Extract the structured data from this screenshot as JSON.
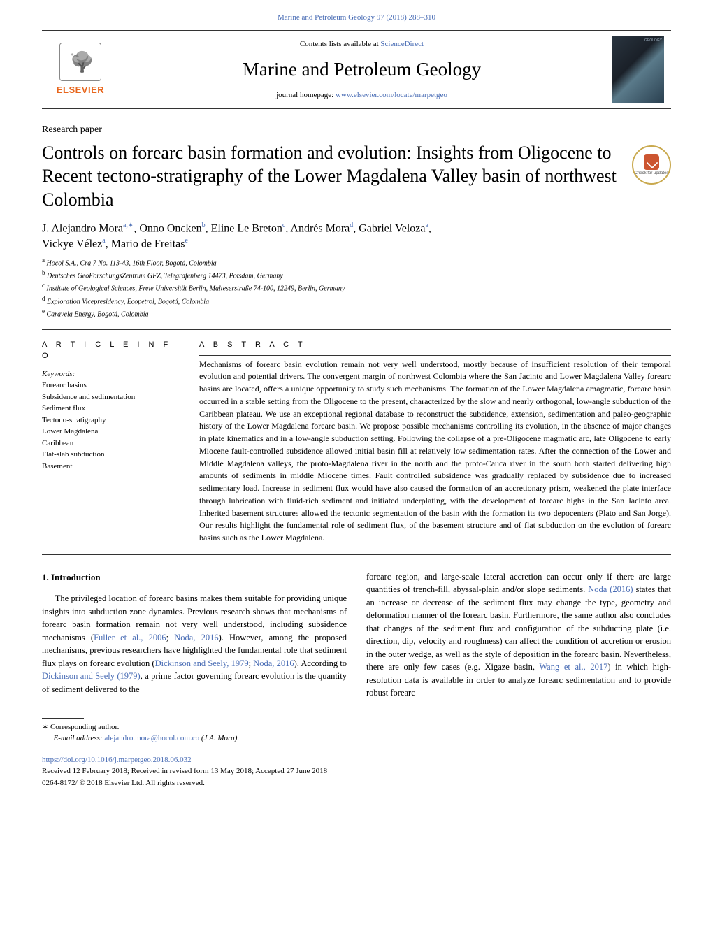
{
  "journal": {
    "citation": "Marine and Petroleum Geology 97 (2018) 288–310",
    "contents_prefix": "Contents lists available at ",
    "contents_link": "ScienceDirect",
    "name": "Marine and Petroleum Geology",
    "homepage_prefix": "journal homepage: ",
    "homepage_url": "www.elsevier.com/locate/marpetgeo",
    "publisher": "ELSEVIER",
    "cover_label": "GEOLOGY"
  },
  "article": {
    "type": "Research paper",
    "title": "Controls on forearc basin formation and evolution: Insights from Oligocene to Recent tectono-stratigraphy of the Lower Magdalena Valley basin of northwest Colombia",
    "check_updates": "Check for updates"
  },
  "authors_line1": "J. Alejandro Mora",
  "authors_a1_sup": "a,∗",
  "authors_sep1": ", Onno Oncken",
  "authors_sup_b": "b",
  "authors_sep2": ", Eline Le Breton",
  "authors_sup_c": "c",
  "authors_sep3": ", Andrés Mora",
  "authors_sup_d": "d",
  "authors_sep4": ", Gabriel Veloza",
  "authors_sup_a2": "a",
  "authors_sep5": ",",
  "authors_line2a": "Vickye Vélez",
  "authors_sup_a3": "a",
  "authors_sep6": ", Mario de Freitas",
  "authors_sup_e": "e",
  "affiliations": {
    "a": "Hocol S.A., Cra 7 No. 113-43, 16th Floor, Bogotá, Colombia",
    "b": "Deutsches GeoForschungsZentrum GFZ, Telegrafenberg 14473, Potsdam, Germany",
    "c": "Institute of Geological Sciences, Freie Universität Berlin, Malteserstraße 74-100, 12249, Berlin, Germany",
    "d": "Exploration Vicepresidency, Ecopetrol, Bogotá, Colombia",
    "e": "Caravela Energy, Bogotá, Colombia"
  },
  "sections": {
    "article_info": "A R T I C L E  I N F O",
    "abstract": "A B S T R A C T",
    "keywords_label": "Keywords:",
    "intro_heading": "1. Introduction"
  },
  "keywords": [
    "Forearc basins",
    "Subsidence and sedimentation",
    "Sediment flux",
    "Tectono-stratigraphy",
    "Lower Magdalena",
    "Caribbean",
    "Flat-slab subduction",
    "Basement"
  ],
  "abstract": "Mechanisms of forearc basin evolution remain not very well understood, mostly because of insufficient resolution of their temporal evolution and potential drivers. The convergent margin of northwest Colombia where the San Jacinto and Lower Magdalena Valley forearc basins are located, offers a unique opportunity to study such mechanisms. The formation of the Lower Magdalena amagmatic, forearc basin occurred in a stable setting from the Oligocene to the present, characterized by the slow and nearly orthogonal, low-angle subduction of the Caribbean plateau. We use an exceptional regional database to reconstruct the subsidence, extension, sedimentation and paleo-geographic history of the Lower Magdalena forearc basin. We propose possible mechanisms controlling its evolution, in the absence of major changes in plate kinematics and in a low-angle subduction setting. Following the collapse of a pre-Oligocene magmatic arc, late Oligocene to early Miocene fault-controlled subsidence allowed initial basin fill at relatively low sedimentation rates. After the connection of the Lower and Middle Magdalena valleys, the proto-Magdalena river in the north and the proto-Cauca river in the south both started delivering high amounts of sediments in middle Miocene times. Fault controlled subsidence was gradually replaced by subsidence due to increased sedimentary load. Increase in sediment flux would have also caused the formation of an accretionary prism, weakened the plate interface through lubrication with fluid-rich sediment and initiated underplating, with the development of forearc highs in the San Jacinto area. Inherited basement structures allowed the tectonic segmentation of the basin with the formation its two depocenters (Plato and San Jorge). Our results highlight the fundamental role of sediment flux, of the basement structure and of flat subduction on the evolution of forearc basins such as the Lower Magdalena.",
  "intro": {
    "col1_p1_a": "The privileged location of forearc basins makes them suitable for providing unique insights into subduction zone dynamics. Previous research shows that mechanisms of forearc basin formation remain not very well understood, including subsidence mechanisms (",
    "col1_ref1": "Fuller et al., 2006",
    "col1_p1_b": "; ",
    "col1_ref2": "Noda, 2016",
    "col1_p1_c": "). However, among the proposed mechanisms, previous researchers have highlighted the fundamental role that sediment flux plays on forearc evolution (",
    "col1_ref3": "Dickinson and Seely, 1979",
    "col1_p1_d": "; ",
    "col1_ref4": "Noda, 2016",
    "col1_p1_e": "). According to ",
    "col1_ref5": "Dickinson and Seely (1979)",
    "col1_p1_f": ", a prime factor governing forearc evolution is the quantity of sediment delivered to the",
    "col2_p1_a": "forearc region, and large-scale lateral accretion can occur only if there are large quantities of trench-fill, abyssal-plain and/or slope sediments. ",
    "col2_ref1": "Noda (2016)",
    "col2_p1_b": " states that an increase or decrease of the sediment flux may change the type, geometry and deformation manner of the forearc basin. Furthermore, the same author also concludes that changes of the sediment flux and configuration of the subducting plate (i.e. direction, dip, velocity and roughness) can affect the condition of accretion or erosion in the outer wedge, as well as the style of deposition in the forearc basin. Nevertheless, there are only few cases (e.g. Xigaze basin, ",
    "col2_ref2": "Wang et al., 2017",
    "col2_p1_c": ") in which high-resolution data is available in order to analyze forearc sedimentation and to provide robust forearc"
  },
  "footer": {
    "corr_label": "∗ Corresponding author.",
    "email_label": "E-mail address: ",
    "email": "alejandro.mora@hocol.com.co",
    "email_author": " (J.A. Mora).",
    "doi": "https://doi.org/10.1016/j.marpetgeo.2018.06.032",
    "received": "Received 12 February 2018; Received in revised form 13 May 2018; Accepted 27 June 2018",
    "copyright": "0264-8172/ © 2018 Elsevier Ltd. All rights reserved."
  },
  "colors": {
    "link": "#4a6db5",
    "elsevier_orange": "#e8661c",
    "badge_ring": "#c9a94e",
    "badge_fill": "#cc5530"
  }
}
